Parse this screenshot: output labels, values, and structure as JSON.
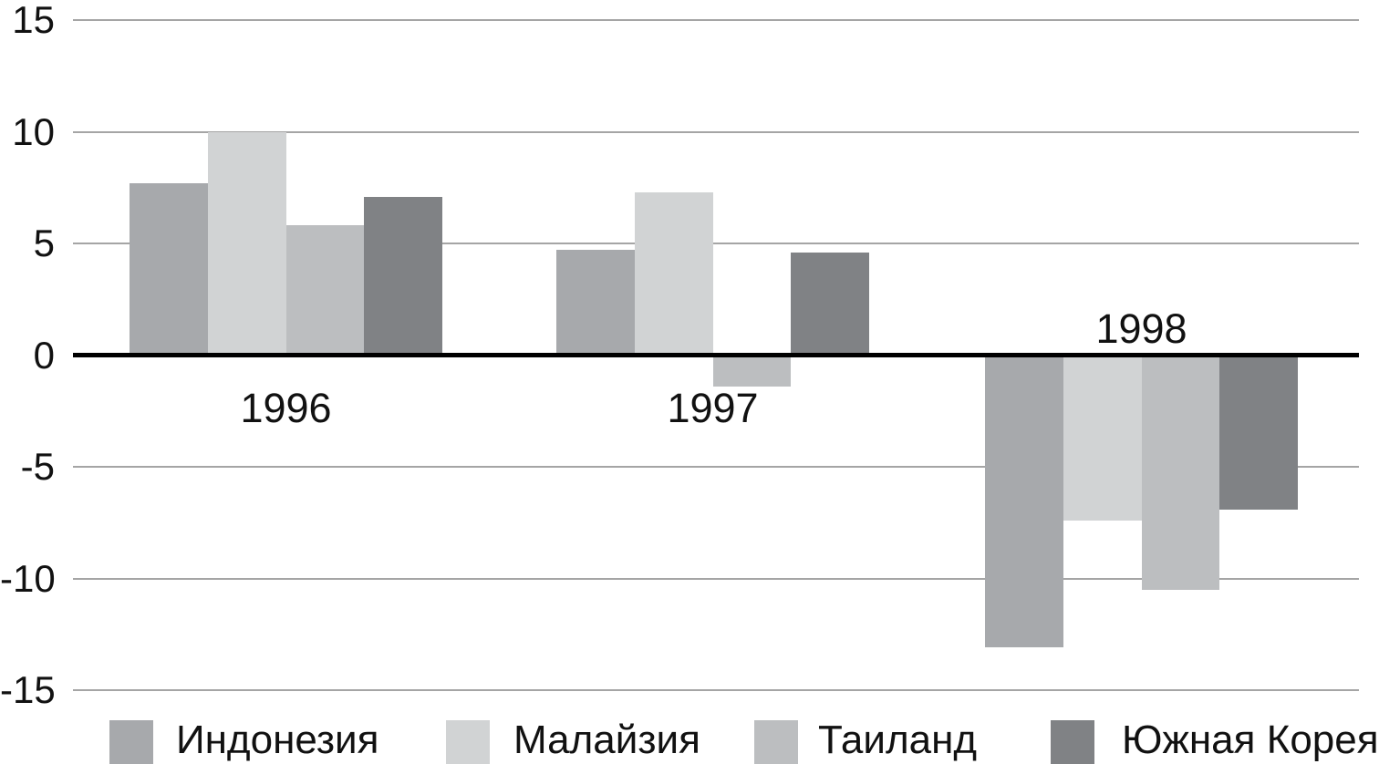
{
  "chart_data": {
    "type": "bar",
    "categories": [
      "1996",
      "1997",
      "1998"
    ],
    "series": [
      {
        "name": "Индонезия",
        "color": "#a7a9ac",
        "values": [
          7.7,
          4.7,
          -13.1
        ]
      },
      {
        "name": "Малайзия",
        "color": "#d1d3d4",
        "values": [
          10.0,
          7.3,
          -7.4
        ]
      },
      {
        "name": "Таиланд",
        "color": "#bcbec0",
        "values": [
          5.8,
          -1.4,
          -10.5
        ]
      },
      {
        "name": "Южная Корея",
        "color": "#808285",
        "values": [
          7.1,
          4.6,
          -6.9
        ]
      }
    ],
    "y_ticks": [
      "15",
      "10",
      "5",
      "0",
      "-5",
      "-10",
      "-15"
    ],
    "y_tick_values": [
      15,
      10,
      5,
      0,
      -5,
      -10,
      -15
    ],
    "ylim": [
      -15,
      15
    ],
    "grid": true,
    "legend_position": "bottom",
    "category_label_side": [
      "below",
      "below",
      "above"
    ],
    "colors": {
      "gridline": "#a5a5a5",
      "zero_line": "#000000",
      "text": "#111111",
      "background": "#ffffff"
    }
  }
}
